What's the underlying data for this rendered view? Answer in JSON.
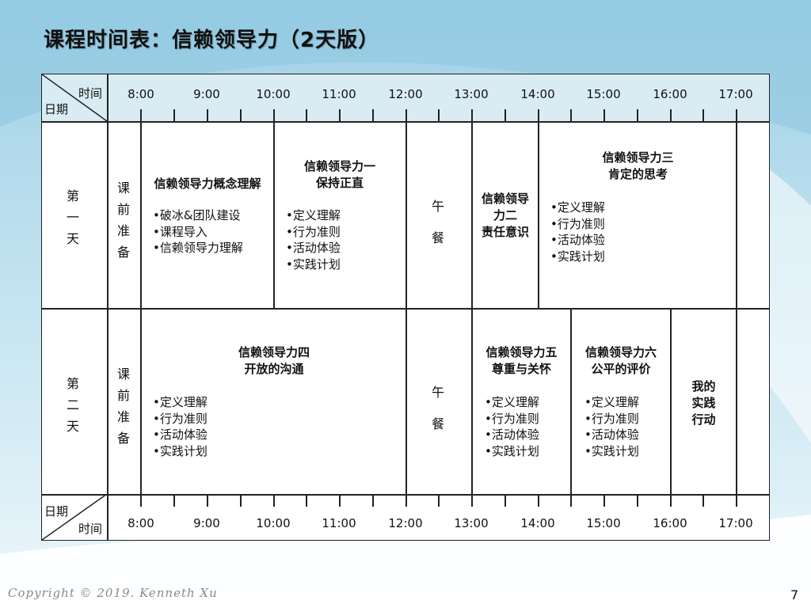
{
  "slide": {
    "title": "课程时间表：信赖领导力（2天版）",
    "footer": "Copyright © 2019. Kenneth Xu",
    "page_number": "7"
  },
  "header": {
    "corner_top": "时间",
    "corner_bottom": "日期",
    "hours": [
      "8:00",
      "9:00",
      "10:00",
      "11:00",
      "12:00",
      "13:00",
      "14:00",
      "15:00",
      "16:00",
      "17:00"
    ]
  },
  "footer_row": {
    "corner_top": "日期",
    "corner_bottom": "时间",
    "hours": [
      "8:00",
      "9:00",
      "10:00",
      "11:00",
      "12:00",
      "13:00",
      "14:00",
      "15:00",
      "16:00",
      "17:00"
    ]
  },
  "day1": {
    "label": [
      "第",
      "一",
      "天"
    ],
    "prep": [
      "课",
      "前",
      "准",
      "备"
    ],
    "block1": {
      "title": "信赖领导力概念理解",
      "bullets": [
        "破冰&团队建设",
        "课程导入",
        "信赖领导力理解"
      ]
    },
    "block2": {
      "title": [
        "信赖领导力一",
        "保持正直"
      ],
      "bullets": [
        "定义理解",
        "行为准则",
        "活动体验",
        "实践计划"
      ]
    },
    "lunch": [
      "午",
      "餐"
    ],
    "block3": {
      "title": [
        "信赖领导",
        "力二",
        "责任意识"
      ]
    },
    "block4": {
      "title": [
        "信赖领导力三",
        "肯定的思考"
      ],
      "bullets": [
        "定义理解",
        "行为准则",
        "活动体验",
        "实践计划"
      ]
    }
  },
  "day2": {
    "label": [
      "第",
      "二",
      "天"
    ],
    "prep": [
      "课",
      "前",
      "准",
      "备"
    ],
    "block1": {
      "title": [
        "信赖领导力四",
        "开放的沟通"
      ],
      "bullets": [
        "定义理解",
        "行为准则",
        "活动体验",
        "实践计划"
      ]
    },
    "lunch": [
      "午",
      "餐"
    ],
    "block2": {
      "title": [
        "信赖领导力五",
        "尊重与关怀"
      ],
      "bullets": [
        "定义理解",
        "行为准则",
        "活动体验",
        "实践计划"
      ]
    },
    "block3": {
      "title": [
        "信赖领导力六",
        "公平的评价"
      ],
      "bullets": [
        "定义理解",
        "行为准则",
        "活动体验",
        "实践计划"
      ]
    },
    "block4": {
      "title": [
        "我的",
        "实践",
        "行动"
      ]
    }
  }
}
